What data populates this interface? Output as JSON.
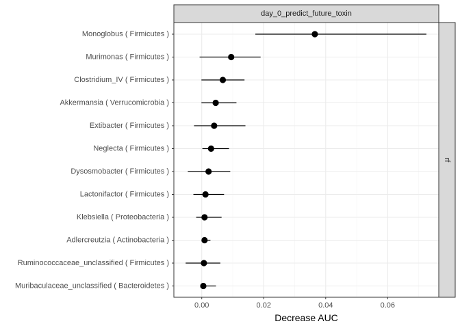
{
  "chart_data": {
    "type": "dot-errorbar",
    "facet_top": "day_0_predict_future_toxin",
    "facet_right": "rf",
    "xlabel": "Decrease AUC",
    "ylabel": "",
    "xlim": [
      -0.009,
      0.0765
    ],
    "xticks": [
      0.0,
      0.02,
      0.04,
      0.06
    ],
    "xtick_labels": [
      "0.00",
      "0.02",
      "0.04",
      "0.06"
    ],
    "grid": true,
    "categories": [
      "Monoglobus ( Firmicutes )",
      "Murimonas ( Firmicutes )",
      "Clostridium_IV ( Firmicutes )",
      "Akkermansia ( Verrucomicrobia )",
      "Extibacter ( Firmicutes )",
      "Neglecta ( Firmicutes )",
      "Dysosmobacter ( Firmicutes )",
      "Lactonifactor ( Firmicutes )",
      "Klebsiella ( Proteobacteria )",
      "Adlercreutzia ( Actinobacteria )",
      "Ruminococcaceae_unclassified ( Firmicutes )",
      "Muribaculaceae_unclassified ( Bacteroidetes )"
    ],
    "values": [
      0.0365,
      0.0095,
      0.0068,
      0.0045,
      0.004,
      0.003,
      0.0022,
      0.0012,
      0.0009,
      0.0009,
      0.0007,
      0.0005
    ],
    "lower": [
      0.0173,
      -0.0007,
      -0.0001,
      -0.0001,
      -0.0025,
      0.0002,
      -0.0045,
      -0.0027,
      -0.0018,
      0.0003,
      -0.0052,
      -0.0005
    ],
    "upper": [
      0.0725,
      0.019,
      0.0138,
      0.0112,
      0.0141,
      0.0088,
      0.0092,
      0.0072,
      0.0064,
      0.0028,
      0.006,
      0.0046
    ],
    "colors": {
      "panel_border": "#333333",
      "strip_fill": "#d9d9d9",
      "grid_major": "#ebebeb",
      "grid_minor": "#f5f5f5",
      "point": "#000000"
    }
  }
}
